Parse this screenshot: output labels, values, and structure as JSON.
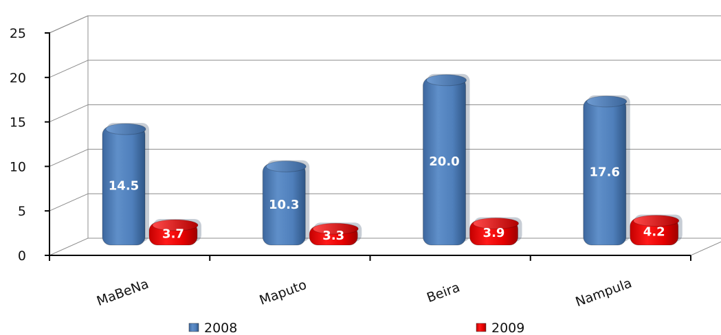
{
  "chart_data": {
    "type": "bar",
    "categories": [
      "MaBeNa",
      "Maputo",
      "Beira",
      "Nampula"
    ],
    "series": [
      {
        "name": "2008",
        "values": [
          14.5,
          10.3,
          20.0,
          17.6
        ],
        "labels": [
          "14.5",
          "10.3",
          "20.0",
          "17.6"
        ],
        "color": "#4F81BD"
      },
      {
        "name": "2009",
        "values": [
          3.7,
          3.3,
          3.9,
          4.2
        ],
        "labels": [
          "3.7",
          "3.3",
          "3.9",
          "4.2"
        ],
        "color": "#E00000"
      }
    ],
    "y_ticks": [
      "0",
      "5",
      "10",
      "15",
      "20",
      "25"
    ],
    "ylim": [
      0,
      25
    ],
    "grid": true,
    "legend_position": "bottom",
    "style": "3d-column"
  }
}
